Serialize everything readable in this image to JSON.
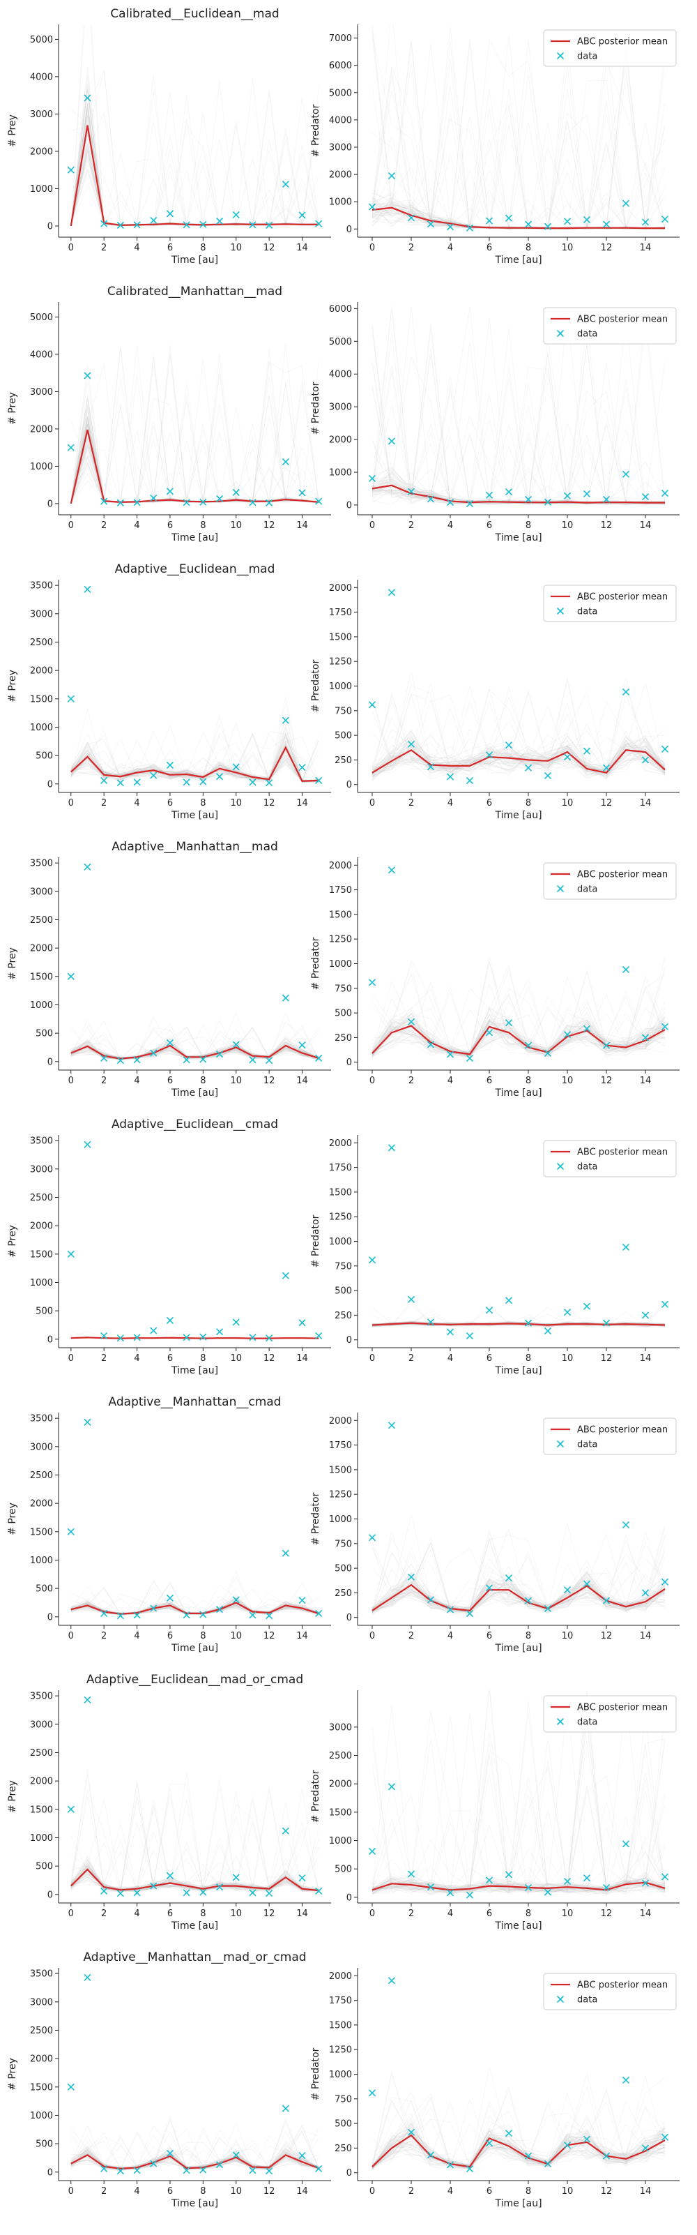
{
  "chart_data": {
    "type": "line",
    "x": [
      0,
      1,
      2,
      3,
      4,
      5,
      6,
      7,
      8,
      9,
      10,
      11,
      12,
      13,
      14,
      15
    ],
    "xlabel": "Time [au]",
    "data_series": {
      "name": "data",
      "prey": [
        1500,
        3430,
        60,
        20,
        30,
        150,
        330,
        30,
        40,
        130,
        300,
        30,
        20,
        1120,
        290,
        60
      ],
      "predator": [
        810,
        1950,
        410,
        180,
        80,
        40,
        300,
        400,
        170,
        90,
        280,
        340,
        170,
        940,
        250,
        360
      ]
    },
    "legend": {
      "posterior_label": "ABC posterior mean",
      "data_label": "data",
      "location": "top-right",
      "subplots": "right column"
    },
    "colors": {
      "posterior_mean": "#d62728",
      "data_marker": "#17becf",
      "ensemble": "#bbbbbb",
      "axis": "#222222"
    },
    "rows": [
      {
        "title": "Calibrated__Euclidean__mad",
        "prey": {
          "ylabel": "# Prey",
          "ylim": [
            -300,
            5400
          ],
          "yticks": [
            0,
            1000,
            2000,
            3000,
            4000,
            5000
          ],
          "spread": 1.0,
          "peak": 4200,
          "mean": [
            0,
            2700,
            80,
            20,
            30,
            40,
            60,
            40,
            30,
            40,
            50,
            40,
            40,
            50,
            40,
            40
          ]
        },
        "predator": {
          "ylabel": "# Predator",
          "ylim": [
            -300,
            7500
          ],
          "yticks": [
            0,
            1000,
            2000,
            3000,
            4000,
            5000,
            6000,
            7000
          ],
          "spread": 1.6,
          "peak": 7400,
          "mean": [
            700,
            780,
            500,
            300,
            200,
            80,
            50,
            40,
            40,
            30,
            30,
            40,
            40,
            40,
            30,
            30
          ]
        }
      },
      {
        "title": "Calibrated__Manhattan__mad",
        "prey": {
          "ylabel": "# Prey",
          "ylim": [
            -300,
            5400
          ],
          "yticks": [
            0,
            1000,
            2000,
            3000,
            4000,
            5000
          ],
          "spread": 1.0,
          "peak": 4200,
          "mean": [
            0,
            1980,
            70,
            40,
            50,
            80,
            100,
            60,
            50,
            60,
            100,
            60,
            60,
            110,
            80,
            40
          ]
        },
        "predator": {
          "ylabel": "# Predator",
          "ylim": [
            -300,
            6200
          ],
          "yticks": [
            0,
            1000,
            2000,
            3000,
            4000,
            5000,
            6000
          ],
          "spread": 1.6,
          "peak": 6000,
          "mean": [
            500,
            600,
            350,
            250,
            120,
            80,
            100,
            90,
            80,
            80,
            90,
            70,
            80,
            80,
            70,
            70
          ]
        }
      },
      {
        "title": "Adaptive__Euclidean__mad",
        "prey": {
          "ylabel": "# Prey",
          "ylim": [
            -150,
            3600
          ],
          "yticks": [
            0,
            500,
            1000,
            1500,
            2000,
            2500,
            3000,
            3500
          ],
          "spread": 1.0,
          "peak": 850,
          "mean": [
            210,
            480,
            160,
            130,
            200,
            240,
            160,
            170,
            120,
            270,
            200,
            120,
            80,
            640,
            50,
            60
          ]
        },
        "predator": {
          "ylabel": "# Predator",
          "ylim": [
            -80,
            2080
          ],
          "yticks": [
            0,
            250,
            500,
            750,
            1000,
            1250,
            1500,
            1750,
            2000
          ],
          "spread": 1.0,
          "peak": 800,
          "mean": [
            120,
            240,
            350,
            200,
            190,
            190,
            280,
            270,
            250,
            240,
            330,
            160,
            120,
            350,
            330,
            150
          ]
        }
      },
      {
        "title": "Adaptive__Manhattan__mad",
        "prey": {
          "ylabel": "# Prey",
          "ylim": [
            -150,
            3600
          ],
          "yticks": [
            0,
            500,
            1000,
            1500,
            2000,
            2500,
            3000,
            3500
          ],
          "spread": 1.0,
          "peak": 600,
          "mean": [
            150,
            270,
            100,
            50,
            80,
            150,
            280,
            80,
            80,
            150,
            250,
            100,
            80,
            280,
            150,
            60
          ]
        },
        "predator": {
          "ylabel": "# Predator",
          "ylim": [
            -80,
            2080
          ],
          "yticks": [
            0,
            250,
            500,
            750,
            1000,
            1250,
            1500,
            1750,
            2000
          ],
          "spread": 1.0,
          "peak": 700,
          "mean": [
            90,
            300,
            370,
            200,
            110,
            80,
            360,
            300,
            150,
            100,
            260,
            320,
            170,
            150,
            220,
            330
          ]
        }
      },
      {
        "title": "Adaptive__Euclidean__cmad",
        "prey": {
          "ylabel": "# Prey",
          "ylim": [
            -150,
            3600
          ],
          "yticks": [
            0,
            500,
            1000,
            1500,
            2000,
            2500,
            3000,
            3500
          ],
          "spread": 0.25,
          "peak": 150,
          "mean": [
            20,
            30,
            20,
            15,
            20,
            20,
            25,
            20,
            15,
            20,
            20,
            15,
            15,
            20,
            20,
            15
          ]
        },
        "predator": {
          "ylabel": "# Predator",
          "ylim": [
            -80,
            2080
          ],
          "yticks": [
            0,
            250,
            500,
            750,
            1000,
            1250,
            1500,
            1750,
            2000
          ],
          "spread": 0.25,
          "peak": 250,
          "mean": [
            150,
            160,
            170,
            160,
            155,
            160,
            160,
            165,
            160,
            150,
            160,
            160,
            155,
            160,
            155,
            150
          ]
        }
      },
      {
        "title": "Adaptive__Manhattan__cmad",
        "prey": {
          "ylabel": "# Prey",
          "ylim": [
            -150,
            3600
          ],
          "yticks": [
            0,
            500,
            1000,
            1500,
            2000,
            2500,
            3000,
            3500
          ],
          "spread": 0.8,
          "peak": 500,
          "mean": [
            130,
            200,
            90,
            50,
            70,
            150,
            200,
            60,
            60,
            130,
            250,
            90,
            70,
            200,
            150,
            60
          ]
        },
        "predator": {
          "ylabel": "# Predator",
          "ylim": [
            -80,
            2080
          ],
          "yticks": [
            0,
            250,
            500,
            750,
            1000,
            1250,
            1500,
            1750,
            2000
          ],
          "spread": 1.0,
          "peak": 700,
          "mean": [
            70,
            200,
            330,
            170,
            90,
            70,
            280,
            280,
            150,
            90,
            200,
            320,
            170,
            110,
            160,
            290
          ]
        }
      },
      {
        "title": "Adaptive__Euclidean__mad_or_cmad",
        "prey": {
          "ylabel": "# Prey",
          "ylim": [
            -150,
            3600
          ],
          "yticks": [
            0,
            500,
            1000,
            1500,
            2000,
            2500,
            3000,
            3500
          ],
          "spread": 1.0,
          "peak": 2000,
          "mean": [
            150,
            440,
            130,
            80,
            100,
            150,
            200,
            150,
            100,
            150,
            150,
            120,
            100,
            300,
            100,
            70
          ]
        },
        "predator": {
          "ylabel": "# Predator",
          "ylim": [
            -100,
            3650
          ],
          "yticks": [
            0,
            500,
            1000,
            1500,
            2000,
            2500,
            3000
          ],
          "spread": 1.3,
          "peak": 3500,
          "mean": [
            130,
            240,
            220,
            170,
            130,
            150,
            200,
            190,
            170,
            160,
            180,
            160,
            130,
            230,
            260,
            160
          ]
        }
      },
      {
        "title": "Adaptive__Manhattan__mad_or_cmad",
        "prey": {
          "ylabel": "# Prey",
          "ylim": [
            -150,
            3600
          ],
          "yticks": [
            0,
            500,
            1000,
            1500,
            2000,
            2500,
            3000,
            3500
          ],
          "spread": 1.0,
          "peak": 700,
          "mean": [
            150,
            300,
            100,
            60,
            80,
            170,
            280,
            70,
            80,
            150,
            260,
            90,
            80,
            300,
            180,
            70
          ]
        },
        "predator": {
          "ylabel": "# Predator",
          "ylim": [
            -80,
            2080
          ],
          "yticks": [
            0,
            250,
            500,
            750,
            1000,
            1250,
            1500,
            1750,
            2000
          ],
          "spread": 1.0,
          "peak": 700,
          "mean": [
            60,
            250,
            380,
            170,
            90,
            60,
            350,
            270,
            150,
            90,
            280,
            310,
            170,
            140,
            220,
            330
          ]
        }
      }
    ]
  }
}
